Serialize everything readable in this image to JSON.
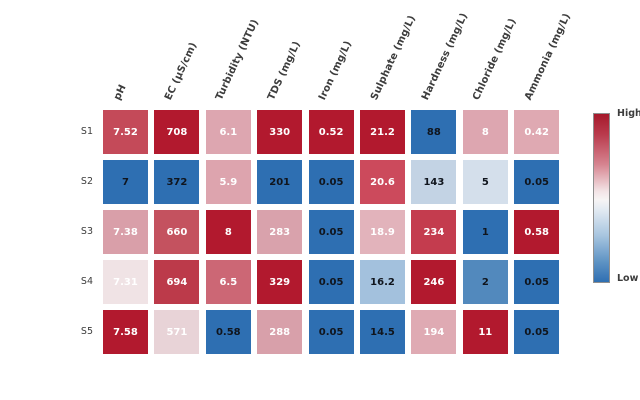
{
  "chart_data": {
    "type": "heatmap",
    "title": "",
    "rows": [
      "S1",
      "S2",
      "S3",
      "S4",
      "S5"
    ],
    "columns": [
      "pH",
      "EC (µS/cm)",
      "Turbidity (NTU)",
      "TDS (mg/L)",
      "Iron (mg/L)",
      "Sulphate (mg/L)",
      "Hardness (mg/L)",
      "Chloride (mg/L)",
      "Ammonia (mg/L)"
    ],
    "values": [
      [
        7.52,
        708,
        6.1,
        330,
        0.52,
        21.2,
        88,
        8,
        0.42
      ],
      [
        7,
        372,
        5.9,
        201,
        0.05,
        20.6,
        143,
        5,
        0.05
      ],
      [
        7.38,
        660,
        8,
        283,
        0.05,
        18.9,
        234,
        1,
        0.58
      ],
      [
        7.31,
        694,
        6.5,
        329,
        0.05,
        16.2,
        246,
        2,
        0.05
      ],
      [
        7.58,
        571,
        0.58,
        288,
        0.05,
        14.5,
        194,
        11,
        0.05
      ]
    ],
    "cells": [
      [
        {
          "label": "7.52",
          "bg": "#c44a59",
          "tc": "light"
        },
        {
          "label": "708",
          "bg": "#b2192e",
          "tc": "light"
        },
        {
          "label": "6.1",
          "bg": "#dda6b0",
          "tc": "light"
        },
        {
          "label": "330",
          "bg": "#b2192e",
          "tc": "light"
        },
        {
          "label": "0.52",
          "bg": "#b2192e",
          "tc": "light"
        },
        {
          "label": "21.2",
          "bg": "#b2192e",
          "tc": "light"
        },
        {
          "label": "88",
          "bg": "#2e6fb2",
          "tc": "dark"
        },
        {
          "label": "8",
          "bg": "#dda6b0",
          "tc": "light"
        },
        {
          "label": "0.42",
          "bg": "#dfa9b2",
          "tc": "light"
        }
      ],
      [
        {
          "label": "7",
          "bg": "#2e6fb2",
          "tc": "dark"
        },
        {
          "label": "372",
          "bg": "#2e6fb2",
          "tc": "dark"
        },
        {
          "label": "5.9",
          "bg": "#dda4ae",
          "tc": "light"
        },
        {
          "label": "201",
          "bg": "#2e6fb2",
          "tc": "dark"
        },
        {
          "label": "0.05",
          "bg": "#2e6fb2",
          "tc": "dark"
        },
        {
          "label": "20.6",
          "bg": "#cc4a5c",
          "tc": "light"
        },
        {
          "label": "143",
          "bg": "#c3d3e4",
          "tc": "dark"
        },
        {
          "label": "5",
          "bg": "#d4dfeb",
          "tc": "dark"
        },
        {
          "label": "0.05",
          "bg": "#2e6fb2",
          "tc": "dark"
        }
      ],
      [
        {
          "label": "7.38",
          "bg": "#d99fa9",
          "tc": "light"
        },
        {
          "label": "660",
          "bg": "#c4525f",
          "tc": "light"
        },
        {
          "label": "8",
          "bg": "#b2192e",
          "tc": "light"
        },
        {
          "label": "283",
          "bg": "#d9a2ac",
          "tc": "light"
        },
        {
          "label": "0.05",
          "bg": "#2e6fb2",
          "tc": "dark"
        },
        {
          "label": "18.9",
          "bg": "#e2b3bb",
          "tc": "light"
        },
        {
          "label": "234",
          "bg": "#c43c4e",
          "tc": "light"
        },
        {
          "label": "1",
          "bg": "#2e6fb2",
          "tc": "dark"
        },
        {
          "label": "0.58",
          "bg": "#b2192e",
          "tc": "light"
        }
      ],
      [
        {
          "label": "7.31",
          "bg": "#f0e3e5",
          "tc": "light"
        },
        {
          "label": "694",
          "bg": "#bc3a4a",
          "tc": "light"
        },
        {
          "label": "6.5",
          "bg": "#cc6775",
          "tc": "light"
        },
        {
          "label": "329",
          "bg": "#b2192e",
          "tc": "light"
        },
        {
          "label": "0.05",
          "bg": "#2e6fb2",
          "tc": "dark"
        },
        {
          "label": "16.2",
          "bg": "#a3c1dd",
          "tc": "dark"
        },
        {
          "label": "246",
          "bg": "#b2192e",
          "tc": "light"
        },
        {
          "label": "2",
          "bg": "#5289bd",
          "tc": "dark"
        },
        {
          "label": "0.05",
          "bg": "#2e6fb2",
          "tc": "dark"
        }
      ],
      [
        {
          "label": "7.58",
          "bg": "#b2192e",
          "tc": "light"
        },
        {
          "label": "571",
          "bg": "#e8d3d7",
          "tc": "light"
        },
        {
          "label": "0.58",
          "bg": "#2e6fb2",
          "tc": "dark"
        },
        {
          "label": "288",
          "bg": "#d8a0aa",
          "tc": "light"
        },
        {
          "label": "0.05",
          "bg": "#2e6fb2",
          "tc": "dark"
        },
        {
          "label": "14.5",
          "bg": "#2e6fb2",
          "tc": "dark"
        },
        {
          "label": "194",
          "bg": "#dfaab3",
          "tc": "light"
        },
        {
          "label": "11",
          "bg": "#b2192e",
          "tc": "light"
        },
        {
          "label": "0.05",
          "bg": "#2e6fb2",
          "tc": "dark"
        }
      ]
    ],
    "colors": {
      "text_on_warm": "#ffffff",
      "text_on_cool": "#10151d",
      "scale_high": "#a6192b",
      "scale_mid": "#f7f4f4",
      "scale_low": "#2f6fb2"
    },
    "colorbar": {
      "high_label": "High",
      "low_label": "Low"
    },
    "legend_position": "right",
    "grid": false
  }
}
